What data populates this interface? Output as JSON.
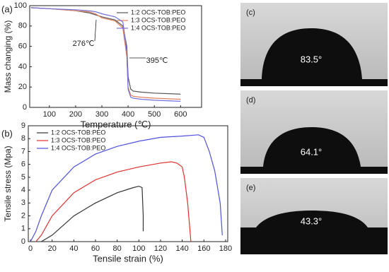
{
  "chart_data": [
    {
      "type": "line",
      "panel_label": "(a)",
      "x_label": "Temperature (℃)",
      "y_label": "Mass changing (%)",
      "xlim": [
        25,
        680
      ],
      "ylim": [
        0,
        100
      ],
      "xticks": [
        100,
        200,
        300,
        400,
        500,
        600
      ],
      "yticks": [
        0,
        20,
        40,
        60,
        80,
        100
      ],
      "annotations": [
        "276℃",
        "395℃"
      ],
      "legend": "upper right",
      "series": [
        {
          "name": "1:2 OCS-TOB:PEO",
          "color": "#555555",
          "x": [
            30,
            100,
            200,
            250,
            276,
            300,
            350,
            380,
            395,
            400,
            410,
            420,
            450,
            500,
            600
          ],
          "values": [
            98,
            97,
            95,
            93,
            91,
            89,
            86,
            80,
            60,
            30,
            18,
            16,
            15,
            14,
            13
          ]
        },
        {
          "name": "1:3 OCS-TOB:PEO",
          "color": "#e0805e",
          "x": [
            30,
            100,
            200,
            250,
            276,
            300,
            350,
            380,
            395,
            400,
            410,
            420,
            450,
            500,
            600
          ],
          "values": [
            98,
            97,
            95,
            94,
            92,
            88,
            85,
            78,
            50,
            20,
            12,
            11,
            10,
            9,
            8
          ]
        },
        {
          "name": "1:4 OCS-TOB:PEO",
          "color": "#7070e0",
          "x": [
            30,
            100,
            200,
            250,
            276,
            300,
            350,
            380,
            395,
            400,
            410,
            420,
            450,
            500,
            600
          ],
          "values": [
            98,
            97,
            96,
            95,
            94,
            92,
            89,
            84,
            55,
            18,
            10,
            9,
            8,
            7,
            6
          ]
        }
      ]
    },
    {
      "type": "line",
      "panel_label": "(b)",
      "x_label": "Tensile strain (%)",
      "y_label": "Tensile stress (Mpa)",
      "xlim": [
        -2,
        182
      ],
      "ylim": [
        0,
        9
      ],
      "xticks": [
        0,
        20,
        40,
        60,
        80,
        100,
        120,
        140,
        160,
        180
      ],
      "yticks": [
        0,
        1,
        2,
        3,
        4,
        5,
        6,
        7,
        8,
        9
      ],
      "annotations": [],
      "legend": "upper left",
      "series": [
        {
          "name": "1:2 OCS-TOB:PEO",
          "color": "#333333",
          "x": [
            10,
            20,
            40,
            60,
            80,
            95,
            100,
            103,
            104,
            104
          ],
          "values": [
            0,
            0.5,
            2,
            3,
            3.8,
            4.2,
            4.3,
            4.2,
            2,
            0.8
          ]
        },
        {
          "name": "1:3 OCS-TOB:PEO",
          "color": "#e03030",
          "x": [
            5,
            10,
            20,
            40,
            60,
            80,
            100,
            120,
            130,
            135,
            140,
            142,
            145,
            147,
            148
          ],
          "values": [
            0,
            0.5,
            2,
            3.8,
            4.8,
            5.4,
            5.8,
            6.1,
            6.2,
            6.1,
            5.8,
            5,
            3,
            1,
            0
          ]
        },
        {
          "name": "1:4 OCS-TOB:PEO",
          "color": "#5050e0",
          "x": [
            0,
            5,
            10,
            20,
            40,
            60,
            80,
            100,
            120,
            140,
            155,
            160,
            165,
            170,
            175,
            177
          ],
          "values": [
            0,
            0.8,
            2,
            4,
            5.8,
            6.8,
            7.4,
            7.8,
            8.1,
            8.2,
            8.3,
            8.1,
            7,
            5.5,
            3,
            0.5
          ]
        }
      ]
    }
  ],
  "images": [
    {
      "label": "(c)",
      "angle": "83.5°"
    },
    {
      "label": "(d)",
      "angle": "64.1°"
    },
    {
      "label": "(e)",
      "angle": "43.3°"
    }
  ]
}
